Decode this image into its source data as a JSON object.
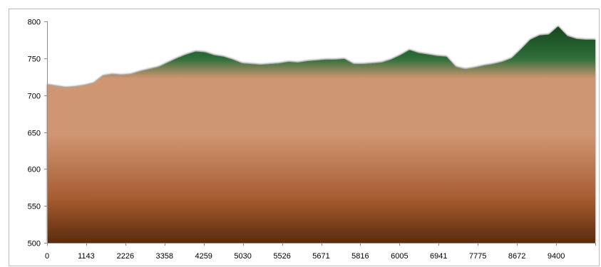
{
  "chart_data": {
    "type": "area",
    "title": "",
    "xlabel": "",
    "ylabel": "",
    "ylim": [
      500,
      800
    ],
    "y_ticks": [
      500,
      550,
      600,
      650,
      700,
      750,
      800
    ],
    "x_tick_labels": [
      "0",
      "1143",
      "2226",
      "3358",
      "4259",
      "5030",
      "5526",
      "5671",
      "5816",
      "6005",
      "6941",
      "7775",
      "8672",
      "9400"
    ],
    "grid": false,
    "legend": "none",
    "series": [
      {
        "values": [
          714,
          712,
          710,
          711,
          713,
          716,
          726,
          728,
          727,
          728,
          732,
          735,
          738,
          744,
          750,
          755,
          759,
          758,
          754,
          752,
          748,
          743,
          742,
          741,
          742,
          743,
          745,
          744,
          746,
          747,
          748,
          748,
          749,
          742,
          742,
          743,
          744,
          748,
          754,
          761,
          757,
          755,
          753,
          752,
          738,
          735,
          737,
          740,
          742,
          745,
          750,
          762,
          775,
          781,
          782,
          793,
          780,
          776,
          775,
          775
        ]
      }
    ],
    "colors": {
      "terrain_top": "#17471f",
      "terrain_mid": "#2f6f3a",
      "soil_light": "#cf9672",
      "soil_mid": "#a65b30",
      "soil_dark": "#5a2b0d",
      "axis": "#8c8c8c"
    }
  }
}
